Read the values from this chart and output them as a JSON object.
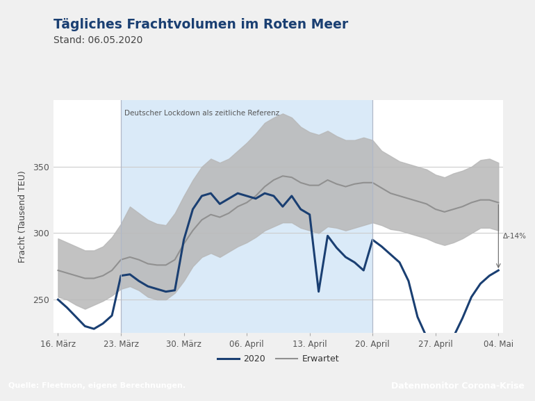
{
  "title": "Tägliches Frachtvolumen im Roten Meer",
  "subtitle": "Stand: 06.05.2020",
  "ylabel": "Fracht (Tausend TEU)",
  "footer_left": "Quelle: Fleetmon, eigene Berechnungen.",
  "footer_right": "Datenmonitor Corona-Krise",
  "lockdown_label": "Deutscher Lockdown als zeitliche Referenz",
  "annotation": "Δ-14%",
  "background_color": "#f0f0f0",
  "plot_bg_color": "#ffffff",
  "lockdown_bg_color": "#daeaf8",
  "footer_bg_color": "#1e4f8c",
  "x_tick_labels": [
    "16. März",
    "23. März",
    "30. März",
    "06. April",
    "13. April",
    "20. April",
    "27. April",
    "04. Mai"
  ],
  "x_tick_positions": [
    0,
    7,
    14,
    21,
    28,
    35,
    42,
    49
  ],
  "lockdown_start": 7,
  "lockdown_end": 35,
  "ylim": [
    225,
    400
  ],
  "yticks": [
    250,
    300,
    350
  ],
  "line2020": [
    250,
    244,
    237,
    230,
    228,
    232,
    238,
    268,
    269,
    264,
    260,
    258,
    256,
    257,
    295,
    318,
    328,
    330,
    322,
    326,
    330,
    328,
    326,
    330,
    328,
    320,
    328,
    318,
    314,
    256,
    298,
    289,
    282,
    278,
    272,
    295,
    290,
    284,
    278,
    264,
    237,
    222,
    218,
    215,
    222,
    236,
    252,
    262,
    268,
    272
  ],
  "expected_line": [
    272,
    270,
    268,
    266,
    266,
    268,
    272,
    280,
    282,
    280,
    277,
    276,
    276,
    280,
    292,
    302,
    310,
    314,
    312,
    315,
    320,
    323,
    328,
    335,
    340,
    343,
    342,
    338,
    336,
    336,
    340,
    337,
    335,
    337,
    338,
    338,
    334,
    330,
    328,
    326,
    324,
    322,
    318,
    316,
    318,
    320,
    323,
    325,
    325,
    323
  ],
  "expected_upper": [
    296,
    293,
    290,
    287,
    287,
    290,
    297,
    307,
    320,
    315,
    310,
    307,
    306,
    315,
    328,
    340,
    350,
    356,
    353,
    356,
    362,
    368,
    375,
    383,
    387,
    390,
    387,
    380,
    376,
    374,
    377,
    373,
    370,
    370,
    372,
    370,
    362,
    358,
    354,
    352,
    350,
    348,
    344,
    342,
    345,
    347,
    350,
    355,
    356,
    353
  ],
  "expected_lower": [
    252,
    250,
    246,
    243,
    246,
    249,
    253,
    258,
    260,
    257,
    252,
    250,
    250,
    255,
    264,
    275,
    282,
    285,
    282,
    286,
    290,
    293,
    297,
    302,
    305,
    308,
    308,
    304,
    302,
    300,
    305,
    304,
    302,
    304,
    306,
    308,
    306,
    303,
    302,
    300,
    298,
    296,
    293,
    291,
    293,
    296,
    300,
    304,
    304,
    302
  ],
  "line2020_color": "#1a3f72",
  "expected_line_color": "#909090",
  "expected_band_color": "#b8b8b8",
  "title_color": "#1a3f72",
  "subtitle_color": "#444444",
  "grid_color": "#cccccc",
  "tick_color": "#555555"
}
